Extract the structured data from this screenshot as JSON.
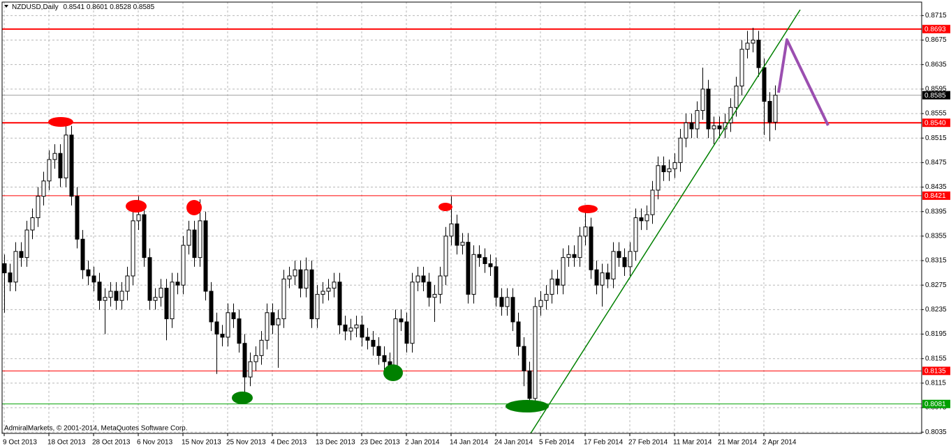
{
  "chart_data": {
    "type": "candlestick",
    "title": "NZDUSD,Daily",
    "copyright": "AdmiralMarkets, © 2001-2014, MetaQuotes Software Corp.",
    "categories": [
      "9 Oct 2013",
      null,
      null,
      null,
      null,
      null,
      null,
      null,
      "18 Oct 2013",
      null,
      null,
      null,
      null,
      null,
      null,
      null,
      "28 Oct 2013",
      null,
      null,
      null,
      null,
      null,
      null,
      null,
      "6 Nov 2013",
      null,
      null,
      null,
      null,
      null,
      null,
      null,
      "15 Nov 2013",
      null,
      null,
      null,
      null,
      null,
      null,
      null,
      "25 Nov 2013",
      null,
      null,
      null,
      null,
      null,
      null,
      null,
      "4 Dec 2013",
      null,
      null,
      null,
      null,
      null,
      null,
      null,
      "13 Dec 2013",
      null,
      null,
      null,
      null,
      null,
      null,
      null,
      "23 Dec 2013",
      null,
      null,
      null,
      null,
      null,
      null,
      null,
      "2 Jan 2014",
      null,
      null,
      null,
      null,
      null,
      null,
      null,
      "14 Jan 2014",
      null,
      null,
      null,
      null,
      null,
      null,
      null,
      "24 Jan 2014",
      null,
      null,
      null,
      null,
      null,
      null,
      null,
      "5 Feb 2014",
      null,
      null,
      null,
      null,
      null,
      null,
      null,
      "17 Feb 2014",
      null,
      null,
      null,
      null,
      null,
      null,
      null,
      "27 Feb 2014",
      null,
      null,
      null,
      null,
      null,
      null,
      null,
      "11 Mar 2014",
      null,
      null,
      null,
      null,
      null,
      null,
      null,
      "21 Mar 2014",
      null,
      null,
      null,
      null,
      null,
      null,
      null,
      "2 Apr 2014",
      null,
      null
    ],
    "open": [
      0.831,
      0.8295,
      0.828,
      0.833,
      0.832,
      0.8365,
      0.8385,
      0.842,
      0.8445,
      0.848,
      0.849,
      0.845,
      0.852,
      0.842,
      0.835,
      0.83,
      0.829,
      0.828,
      0.825,
      0.8255,
      0.8265,
      0.825,
      0.8265,
      0.829,
      0.838,
      0.839,
      0.832,
      0.825,
      0.8255,
      0.827,
      0.822,
      0.828,
      0.8275,
      0.834,
      0.8365,
      0.832,
      0.838,
      0.8265,
      0.8215,
      0.8195,
      0.819,
      0.823,
      0.822,
      0.818,
      0.8125,
      0.815,
      0.816,
      0.8185,
      0.823,
      0.821,
      0.822,
      0.8285,
      0.829,
      0.83,
      0.827,
      0.83,
      0.822,
      0.826,
      0.8265,
      0.827,
      0.828,
      0.821,
      0.82,
      0.8205,
      0.821,
      0.819,
      0.8185,
      0.8175,
      0.816,
      0.815,
      0.814,
      0.822,
      0.8215,
      0.818,
      0.828,
      0.829,
      0.828,
      0.8255,
      0.826,
      0.829,
      0.8355,
      0.8375,
      0.834,
      0.8345,
      0.826,
      0.8325,
      0.832,
      0.831,
      0.8305,
      0.8255,
      0.824,
      0.8255,
      0.8215,
      0.8175,
      0.8135,
      0.809,
      0.824,
      0.825,
      0.826,
      0.8285,
      0.8275,
      0.832,
      0.8325,
      0.832,
      0.8355,
      0.837,
      0.83,
      0.8275,
      0.8295,
      0.8285,
      0.833,
      0.832,
      0.8305,
      0.833,
      0.8385,
      0.838,
      0.839,
      0.843,
      0.847,
      0.846,
      0.8465,
      0.8475,
      0.8515,
      0.854,
      0.853,
      0.856,
      0.8595,
      0.853,
      0.8535,
      0.853,
      0.854,
      0.8565,
      0.86,
      0.866,
      0.867,
      0.8675,
      0.863,
      0.8575,
      0.8541
    ],
    "high": [
      0.8325,
      0.831,
      0.8345,
      0.8345,
      0.838,
      0.84,
      0.8435,
      0.846,
      0.8495,
      0.8505,
      0.8505,
      0.8545,
      0.8535,
      0.8435,
      0.8365,
      0.8315,
      0.8305,
      0.8295,
      0.827,
      0.828,
      0.828,
      0.828,
      0.8305,
      0.8395,
      0.842,
      0.8405,
      0.8335,
      0.827,
      0.8285,
      0.8285,
      0.8295,
      0.8295,
      0.8355,
      0.838,
      0.838,
      0.8415,
      0.8395,
      0.828,
      0.823,
      0.821,
      0.8245,
      0.8245,
      0.8235,
      0.8195,
      0.8165,
      0.8175,
      0.82,
      0.8245,
      0.8245,
      0.8235,
      0.83,
      0.8305,
      0.8315,
      0.8315,
      0.832,
      0.8315,
      0.8275,
      0.828,
      0.8285,
      0.8295,
      0.8295,
      0.8225,
      0.822,
      0.8225,
      0.8225,
      0.8205,
      0.82,
      0.819,
      0.8175,
      0.8165,
      0.8235,
      0.8235,
      0.823,
      0.8295,
      0.8305,
      0.8305,
      0.8295,
      0.8275,
      0.8305,
      0.837,
      0.842,
      0.839,
      0.836,
      0.836,
      0.834,
      0.834,
      0.8335,
      0.8325,
      0.832,
      0.827,
      0.827,
      0.827,
      0.823,
      0.819,
      0.815,
      0.8255,
      0.8265,
      0.8275,
      0.83,
      0.83,
      0.8335,
      0.834,
      0.834,
      0.837,
      0.84,
      0.8385,
      0.8315,
      0.831,
      0.831,
      0.8345,
      0.8345,
      0.8335,
      0.8345,
      0.84,
      0.84,
      0.8405,
      0.8445,
      0.8485,
      0.8485,
      0.848,
      0.849,
      0.853,
      0.8555,
      0.8555,
      0.8575,
      0.863,
      0.861,
      0.855,
      0.855,
      0.8555,
      0.858,
      0.8615,
      0.8675,
      0.869,
      0.8695,
      0.869,
      0.8645,
      0.859,
      0.8601
    ],
    "low": [
      0.823,
      0.8265,
      0.8265,
      0.8305,
      0.8305,
      0.835,
      0.837,
      0.8405,
      0.843,
      0.8465,
      0.8435,
      0.8435,
      0.8405,
      0.8335,
      0.8285,
      0.8275,
      0.8265,
      0.8235,
      0.8195,
      0.824,
      0.8235,
      0.8235,
      0.825,
      0.8275,
      0.8365,
      0.8305,
      0.8235,
      0.8235,
      0.824,
      0.8185,
      0.8205,
      0.826,
      0.826,
      0.8325,
      0.8305,
      0.8305,
      0.825,
      0.82,
      0.813,
      0.8175,
      0.8175,
      0.8205,
      0.8165,
      0.8095,
      0.811,
      0.8135,
      0.8145,
      0.817,
      0.8195,
      0.814,
      0.8205,
      0.827,
      0.8275,
      0.8255,
      0.8255,
      0.8205,
      0.8205,
      0.8245,
      0.825,
      0.8255,
      0.8195,
      0.8185,
      0.8185,
      0.819,
      0.8175,
      0.817,
      0.816,
      0.8145,
      0.8135,
      0.812,
      0.8125,
      0.82,
      0.8165,
      0.8165,
      0.8265,
      0.8265,
      0.824,
      0.8215,
      0.8245,
      0.8275,
      0.834,
      0.8325,
      0.8325,
      0.8245,
      0.8245,
      0.8305,
      0.8295,
      0.829,
      0.824,
      0.8225,
      0.8225,
      0.82,
      0.816,
      0.811,
      0.807,
      0.8075,
      0.8225,
      0.8235,
      0.8245,
      0.826,
      0.826,
      0.8305,
      0.8305,
      0.8305,
      0.834,
      0.8285,
      0.826,
      0.824,
      0.827,
      0.827,
      0.8305,
      0.829,
      0.829,
      0.8315,
      0.8365,
      0.8365,
      0.8375,
      0.8415,
      0.8445,
      0.8445,
      0.845,
      0.846,
      0.85,
      0.8515,
      0.8515,
      0.8545,
      0.8515,
      0.8505,
      0.8515,
      0.8515,
      0.8525,
      0.855,
      0.8585,
      0.8645,
      0.8655,
      0.8615,
      0.852,
      0.851,
      0.8528
    ],
    "close": [
      0.8295,
      0.828,
      0.833,
      0.832,
      0.8365,
      0.8385,
      0.842,
      0.8445,
      0.848,
      0.849,
      0.845,
      0.852,
      0.842,
      0.835,
      0.83,
      0.829,
      0.828,
      0.825,
      0.8255,
      0.8265,
      0.825,
      0.8265,
      0.829,
      0.838,
      0.839,
      0.832,
      0.825,
      0.8255,
      0.827,
      0.822,
      0.828,
      0.8275,
      0.834,
      0.8365,
      0.832,
      0.838,
      0.8265,
      0.8215,
      0.8195,
      0.819,
      0.823,
      0.822,
      0.818,
      0.8125,
      0.815,
      0.816,
      0.8185,
      0.823,
      0.821,
      0.822,
      0.8285,
      0.829,
      0.83,
      0.827,
      0.83,
      0.822,
      0.826,
      0.8265,
      0.827,
      0.828,
      0.821,
      0.82,
      0.8205,
      0.821,
      0.819,
      0.8185,
      0.8175,
      0.816,
      0.815,
      0.814,
      0.822,
      0.8215,
      0.818,
      0.828,
      0.829,
      0.828,
      0.8255,
      0.826,
      0.829,
      0.8355,
      0.8375,
      0.834,
      0.8345,
      0.826,
      0.8325,
      0.832,
      0.831,
      0.8305,
      0.8255,
      0.824,
      0.8255,
      0.8215,
      0.8175,
      0.8135,
      0.809,
      0.824,
      0.825,
      0.826,
      0.8285,
      0.8275,
      0.832,
      0.8325,
      0.832,
      0.8355,
      0.837,
      0.83,
      0.8275,
      0.8295,
      0.8285,
      0.833,
      0.832,
      0.8305,
      0.833,
      0.8385,
      0.838,
      0.839,
      0.843,
      0.847,
      0.846,
      0.8465,
      0.8475,
      0.8515,
      0.854,
      0.853,
      0.856,
      0.8595,
      0.853,
      0.8535,
      0.853,
      0.854,
      0.8565,
      0.86,
      0.866,
      0.867,
      0.8675,
      0.863,
      0.8575,
      0.8541,
      0.8585
    ],
    "ylim": [
      0.8033,
      0.8737
    ],
    "yticks": [
      0.8715,
      0.8675,
      0.8635,
      0.8595,
      0.8555,
      0.8515,
      0.8475,
      0.8435,
      0.8395,
      0.8355,
      0.8315,
      0.8275,
      0.8235,
      0.8195,
      0.8155,
      0.8115,
      0.8075,
      0.8035
    ],
    "grid": true,
    "levels": [
      {
        "value": 0.8693,
        "color": "#ff0000",
        "width": 2
      },
      {
        "value": {
          "value": 0.854,
          "label": "0.8540"
        },
        "color": "#ff0000",
        "width": 2
      },
      {
        "value": 0.8421,
        "color": "#ff0000",
        "width": 1
      },
      {
        "value": 0.8135,
        "color": "#ff0000",
        "width": 1
      },
      {
        "value": 0.8081,
        "color": "#00a000",
        "width": 1
      }
    ]
  }
}
